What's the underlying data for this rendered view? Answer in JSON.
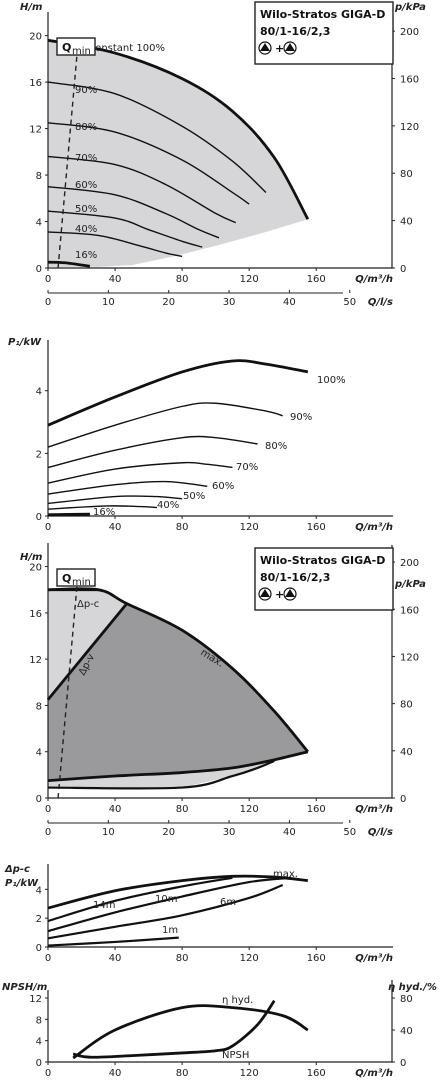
{
  "product": {
    "title_line1": "Wilo-Stratos GIGA-D",
    "title_line2": "80/1-16/2,3"
  },
  "colors": {
    "line": "#111111",
    "area_light": "#d6d6d8",
    "area_dark": "#9a9a9c"
  },
  "chart_data": [
    {
      "id": "hq_percent",
      "type": "line",
      "x_label": "Q/m³/h",
      "x_ticks": [
        "0",
        "40",
        "80",
        "120",
        "160"
      ],
      "xlim": [
        0,
        170
      ],
      "x2_label": "Q/l/s",
      "x2_ticks": [
        "0",
        "10",
        "20",
        "30",
        "40",
        "50"
      ],
      "y_label": "H/m",
      "y_ticks": [
        "0",
        "4",
        "8",
        "12",
        "16",
        "20"
      ],
      "ylim": [
        0,
        21
      ],
      "y2_label": "p/kPa",
      "y2_ticks": [
        "0",
        "40",
        "80",
        "120",
        "160",
        "200"
      ],
      "qmin_label": "Q",
      "qmin_sub": "min",
      "series": [
        {
          "name": "n=constant 100%",
          "points": [
            [
              0,
              19.6
            ],
            [
              40,
              18.5
            ],
            [
              80,
              16.3
            ],
            [
              110,
              13.5
            ],
            [
              135,
              9.5
            ],
            [
              155,
              4.2
            ]
          ]
        },
        {
          "name": "90%",
          "points": [
            [
              0,
              16.0
            ],
            [
              40,
              15.0
            ],
            [
              80,
              12.2
            ],
            [
              110,
              9.2
            ],
            [
              130,
              6.5
            ]
          ]
        },
        {
          "name": "80%",
          "points": [
            [
              0,
              12.5
            ],
            [
              40,
              11.7
            ],
            [
              80,
              9.3
            ],
            [
              110,
              6.5
            ],
            [
              120,
              5.5
            ]
          ]
        },
        {
          "name": "70%",
          "points": [
            [
              0,
              9.6
            ],
            [
              40,
              8.9
            ],
            [
              70,
              7.2
            ],
            [
              100,
              4.7
            ],
            [
              112,
              3.9
            ]
          ]
        },
        {
          "name": "60%",
          "points": [
            [
              0,
              7.0
            ],
            [
              40,
              6.3
            ],
            [
              70,
              4.7
            ],
            [
              90,
              3.3
            ],
            [
              102,
              2.6
            ]
          ]
        },
        {
          "name": "50%",
          "points": [
            [
              0,
              4.9
            ],
            [
              40,
              4.3
            ],
            [
              60,
              3.3
            ],
            [
              80,
              2.3
            ],
            [
              92,
              1.8
            ]
          ]
        },
        {
          "name": "40%",
          "points": [
            [
              0,
              3.1
            ],
            [
              30,
              2.8
            ],
            [
              55,
              1.9
            ],
            [
              70,
              1.3
            ],
            [
              80,
              1.0
            ]
          ]
        },
        {
          "name": "16%",
          "points": [
            [
              0,
              0.5
            ],
            [
              10,
              0.45
            ],
            [
              25,
              0.15
            ]
          ]
        }
      ]
    },
    {
      "id": "p1_percent",
      "type": "line",
      "x_label": "Q/m³/h",
      "x_ticks": [
        "0",
        "40",
        "80",
        "120",
        "160"
      ],
      "xlim": [
        0,
        170
      ],
      "y_label": "P₁/kW",
      "y_ticks": [
        "0",
        "2",
        "4"
      ],
      "ylim": [
        0,
        5.3
      ],
      "series": [
        {
          "name": "100%",
          "points": [
            [
              0,
              2.9
            ],
            [
              40,
              3.8
            ],
            [
              80,
              4.6
            ],
            [
              110,
              4.95
            ],
            [
              130,
              4.85
            ],
            [
              155,
              4.6
            ]
          ]
        },
        {
          "name": "90%",
          "points": [
            [
              0,
              2.2
            ],
            [
              40,
              2.9
            ],
            [
              80,
              3.5
            ],
            [
              100,
              3.6
            ],
            [
              130,
              3.35
            ],
            [
              140,
              3.2
            ]
          ]
        },
        {
          "name": "80%",
          "points": [
            [
              0,
              1.55
            ],
            [
              40,
              2.1
            ],
            [
              80,
              2.5
            ],
            [
              100,
              2.5
            ],
            [
              125,
              2.3
            ]
          ]
        },
        {
          "name": "70%",
          "points": [
            [
              0,
              1.05
            ],
            [
              40,
              1.5
            ],
            [
              80,
              1.7
            ],
            [
              95,
              1.65
            ],
            [
              110,
              1.55
            ]
          ]
        },
        {
          "name": "60%",
          "points": [
            [
              0,
              0.7
            ],
            [
              40,
              1.0
            ],
            [
              70,
              1.1
            ],
            [
              95,
              0.95
            ]
          ]
        },
        {
          "name": "50%",
          "points": [
            [
              0,
              0.4
            ],
            [
              40,
              0.62
            ],
            [
              65,
              0.62
            ],
            [
              80,
              0.55
            ]
          ]
        },
        {
          "name": "40%",
          "points": [
            [
              0,
              0.22
            ],
            [
              35,
              0.32
            ],
            [
              55,
              0.3
            ],
            [
              65,
              0.27
            ]
          ]
        },
        {
          "name": "16%",
          "points": [
            [
              0,
              0.04
            ],
            [
              25,
              0.06
            ]
          ]
        }
      ]
    },
    {
      "id": "hq_dp",
      "type": "area",
      "x_label": "Q/m³/h",
      "x_ticks": [
        "0",
        "40",
        "80",
        "120",
        "160"
      ],
      "xlim": [
        0,
        170
      ],
      "x2_label": "Q/l/s",
      "x2_ticks": [
        "0",
        "10",
        "20",
        "30",
        "40",
        "50"
      ],
      "y_label": "H/m",
      "y_ticks": [
        "0",
        "4",
        "8",
        "12",
        "16",
        "20"
      ],
      "ylim": [
        0,
        21
      ],
      "y2_label": "p/kPa",
      "y2_ticks": [
        "0",
        "40",
        "80",
        "120",
        "160",
        "200"
      ],
      "qmin_label": "Q",
      "qmin_sub": "min",
      "labels": [
        "Δp-c",
        "Δp-v",
        "max."
      ],
      "max_curve": [
        [
          0,
          18.0
        ],
        [
          30,
          18.0
        ],
        [
          47,
          16.8
        ],
        [
          80,
          14.5
        ],
        [
          110,
          11.2
        ],
        [
          135,
          7.5
        ],
        [
          155,
          4.0
        ]
      ],
      "dp_v_line": [
        [
          0,
          8.5
        ],
        [
          47,
          16.8
        ]
      ],
      "min_curve": [
        [
          0,
          1.5
        ],
        [
          40,
          1.9
        ],
        [
          80,
          2.2
        ],
        [
          110,
          2.6
        ],
        [
          135,
          3.3
        ],
        [
          155,
          4.0
        ]
      ],
      "bottom_curve": [
        [
          0,
          0.9
        ],
        [
          80,
          0.9
        ],
        [
          110,
          1.9
        ],
        [
          125,
          2.6
        ],
        [
          135,
          3.2
        ]
      ]
    },
    {
      "id": "p1_dp",
      "type": "line",
      "x_label": "Q/m³/h",
      "x_ticks": [
        "0",
        "40",
        "80",
        "120",
        "160"
      ],
      "xlim": [
        0,
        170
      ],
      "y_label_1": "Δp-c",
      "y_label_2": "P₁/kW",
      "y_ticks": [
        "0",
        "2",
        "4"
      ],
      "ylim": [
        0,
        5.2
      ],
      "series": [
        {
          "name": "max.",
          "points": [
            [
              0,
              2.7
            ],
            [
              40,
              3.9
            ],
            [
              80,
              4.6
            ],
            [
              110,
              4.9
            ],
            [
              135,
              4.85
            ],
            [
              155,
              4.6
            ]
          ]
        },
        {
          "name": "14m",
          "points": [
            [
              0,
              1.8
            ],
            [
              40,
              3.2
            ],
            [
              80,
              4.2
            ],
            [
              110,
              4.8
            ]
          ]
        },
        {
          "name": "10m",
          "points": [
            [
              0,
              1.1
            ],
            [
              40,
              2.4
            ],
            [
              80,
              3.5
            ],
            [
              120,
              4.5
            ],
            [
              145,
              4.8
            ]
          ]
        },
        {
          "name": "6m",
          "points": [
            [
              0,
              0.6
            ],
            [
              40,
              1.4
            ],
            [
              80,
              2.2
            ],
            [
              120,
              3.4
            ],
            [
              140,
              4.3
            ]
          ]
        },
        {
          "name": "1m",
          "points": [
            [
              0,
              0.1
            ],
            [
              40,
              0.35
            ],
            [
              78,
              0.65
            ]
          ]
        }
      ]
    },
    {
      "id": "npsh_eta",
      "type": "line",
      "x_label": "Q/m³/h",
      "x_ticks": [
        "0",
        "40",
        "80",
        "120",
        "160"
      ],
      "xlim": [
        0,
        170
      ],
      "y_label": "NPSH/m",
      "y_ticks": [
        "0",
        "4",
        "8",
        "12"
      ],
      "ylim": [
        0,
        13.5
      ],
      "y2_label": "η hyd./%",
      "y2_ticks": [
        "0",
        "40",
        "80"
      ],
      "y2lim": [
        0,
        90
      ],
      "series": [
        {
          "name": "η hyd.",
          "axis": "right",
          "points": [
            [
              15,
              5
            ],
            [
              40,
              40
            ],
            [
              80,
              68
            ],
            [
              110,
              68
            ],
            [
              140,
              58
            ],
            [
              155,
              40
            ]
          ]
        },
        {
          "name": "NPSH",
          "axis": "left",
          "points": [
            [
              15,
              1.5
            ],
            [
              25,
              0.9
            ],
            [
              50,
              1.2
            ],
            [
              80,
              1.7
            ],
            [
              100,
              2.1
            ],
            [
              110,
              3.0
            ],
            [
              125,
              7.0
            ],
            [
              135,
              11.5
            ]
          ]
        }
      ]
    }
  ]
}
